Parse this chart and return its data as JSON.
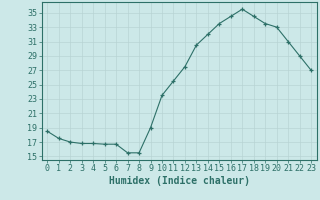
{
  "x": [
    0,
    1,
    2,
    3,
    4,
    5,
    6,
    7,
    8,
    9,
    10,
    11,
    12,
    13,
    14,
    15,
    16,
    17,
    18,
    19,
    20,
    21,
    22,
    23
  ],
  "y": [
    18.5,
    17.5,
    17.0,
    16.8,
    16.8,
    16.7,
    16.7,
    15.5,
    15.5,
    19.0,
    23.5,
    25.5,
    27.5,
    30.5,
    32.0,
    33.5,
    34.5,
    35.5,
    34.5,
    33.5,
    33.0,
    31.0,
    29.0,
    27.0
  ],
  "line_color": "#2d7068",
  "marker": "+",
  "marker_color": "#2d7068",
  "bg_color": "#cce8e8",
  "grid_color": "#b8d4d4",
  "xlabel": "Humidex (Indice chaleur)",
  "ylim": [
    14.5,
    36.5
  ],
  "xlim": [
    -0.5,
    23.5
  ],
  "yticks": [
    15,
    17,
    19,
    21,
    23,
    25,
    27,
    29,
    31,
    33,
    35
  ],
  "xticks": [
    0,
    1,
    2,
    3,
    4,
    5,
    6,
    7,
    8,
    9,
    10,
    11,
    12,
    13,
    14,
    15,
    16,
    17,
    18,
    19,
    20,
    21,
    22,
    23
  ],
  "tick_color": "#2d7068",
  "label_fontsize": 7,
  "tick_fontsize": 6
}
